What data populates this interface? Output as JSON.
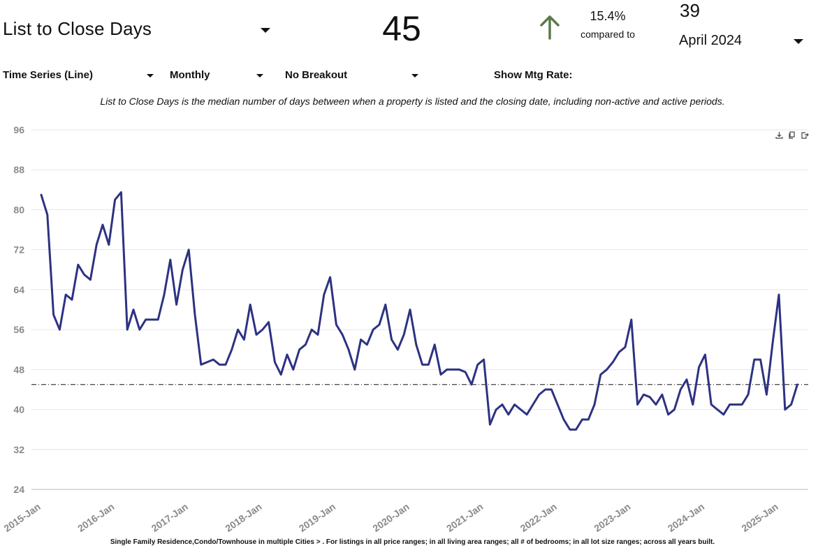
{
  "header": {
    "metric_title": "List to Close Days",
    "current_value": "45",
    "change_percent": "15.4%",
    "compared_label": "compared to",
    "compare_value": "39",
    "compare_date": "April 2024",
    "change_direction": "up",
    "arrow_color": "#5a7a4a"
  },
  "controls": {
    "chart_type": "Time Series (Line)",
    "period": "Monthly",
    "breakout": "No Breakout",
    "mtg_rate_label": "Show Mtg Rate:"
  },
  "description": "List to Close Days is the median number of days between when a property is listed and the closing date, including non-active and active periods.",
  "toolbar": {
    "download": "download-icon",
    "copy": "copy-icon",
    "export": "export-icon"
  },
  "footnote": "Single Family Residence,Condo/Townhouse in multiple Cities > . For listings in all price ranges; in all living area ranges; all # of bedrooms; in all lot size ranges; across all years built.",
  "chart_data": {
    "type": "line",
    "title": "",
    "xlabel": "",
    "ylabel": "",
    "ylim": [
      24,
      96
    ],
    "yticks": [
      "24",
      "32",
      "40",
      "48",
      "56",
      "64",
      "72",
      "80",
      "88",
      "96"
    ],
    "xticks": [
      "2015-Jan",
      "2016-Jan",
      "2017-Jan",
      "2018-Jan",
      "2019-Jan",
      "2020-Jan",
      "2021-Jan",
      "2022-Jan",
      "2023-Jan",
      "2024-Jan",
      "2025-Jan"
    ],
    "start": "2015-Jan",
    "grid": true,
    "line_color": "#2d3282",
    "reference_line": {
      "value": 45,
      "style": "dash-dot"
    },
    "series": [
      {
        "values": [
          83,
          79,
          59,
          56,
          63,
          62,
          69,
          67,
          66,
          73,
          77,
          73,
          82,
          83.5,
          56,
          60,
          56,
          58,
          58,
          58,
          63,
          70,
          61,
          68,
          72,
          59,
          49,
          49.5,
          50,
          49,
          49,
          52,
          56,
          54,
          61,
          55,
          56,
          57.5,
          49.5,
          47,
          51,
          48,
          52,
          53,
          56,
          55,
          63,
          66.5,
          57,
          55,
          52,
          48,
          54,
          53,
          56,
          57,
          61,
          54,
          52,
          55,
          60,
          53,
          49,
          49,
          53,
          47,
          48,
          48,
          48,
          47.5,
          45,
          49,
          50,
          37,
          40,
          41,
          39,
          41,
          40,
          39,
          41,
          43,
          44,
          44,
          41,
          38,
          36,
          36,
          38,
          38,
          41,
          47,
          48,
          49.5,
          51.5,
          52.5,
          58,
          41,
          43,
          42.5,
          41,
          43,
          39,
          40,
          44,
          46,
          41,
          48.5,
          51,
          41,
          40,
          39,
          41,
          41,
          41,
          43,
          50,
          50,
          43,
          53.5,
          63,
          40,
          41,
          45
        ]
      }
    ]
  }
}
